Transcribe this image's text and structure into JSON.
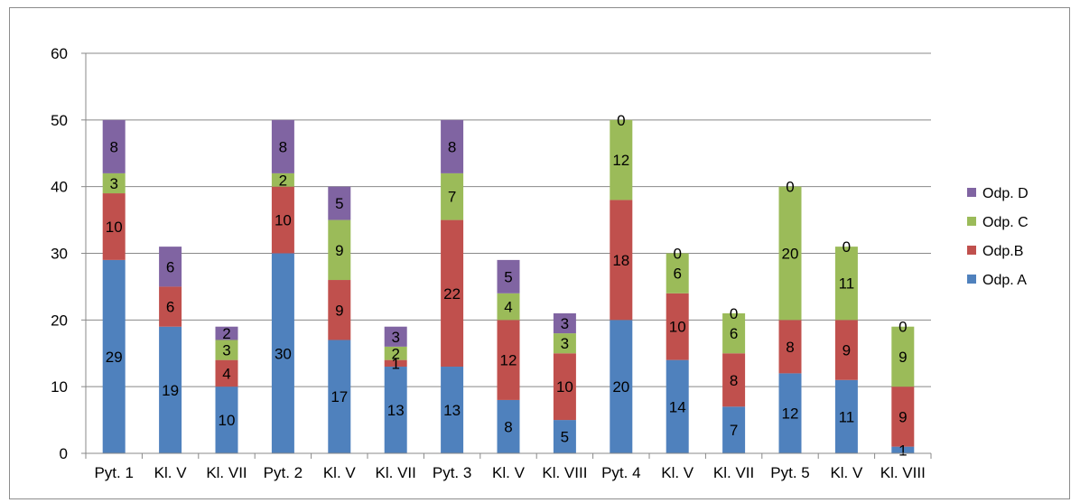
{
  "chart_data": {
    "type": "bar",
    "stacked": true,
    "title": "",
    "xlabel": "",
    "ylabel": "",
    "ylim": [
      0,
      60
    ],
    "yticks": [
      0,
      10,
      20,
      30,
      40,
      50,
      60
    ],
    "grid": true,
    "legend_position": "right",
    "categories": [
      "Pyt. 1",
      "Kl. V",
      "Kl. VII",
      "Pyt. 2",
      "Kl. V",
      "Kl. VII",
      "Pyt. 3",
      "Kl. V",
      "Kl. VIII",
      "Pyt. 4",
      "Kl. V",
      "Kl. VII",
      "Pyt. 5",
      "Kl. V",
      "Kl. VIII"
    ],
    "series": [
      {
        "name": "Odp. A",
        "color": "#4f81bd",
        "values": [
          29,
          19,
          10,
          30,
          17,
          13,
          13,
          8,
          5,
          20,
          14,
          7,
          12,
          11,
          1
        ]
      },
      {
        "name": "Odp.B",
        "color": "#c0504d",
        "values": [
          10,
          6,
          4,
          10,
          9,
          1,
          22,
          12,
          10,
          18,
          10,
          8,
          8,
          9,
          9
        ]
      },
      {
        "name": "Odp. C",
        "color": "#9bbb59",
        "values": [
          3,
          0,
          3,
          2,
          9,
          2,
          7,
          4,
          3,
          12,
          6,
          6,
          20,
          11,
          9
        ]
      },
      {
        "name": "Odp. D",
        "color": "#8064a2",
        "values": [
          8,
          6,
          2,
          8,
          5,
          3,
          8,
          5,
          3,
          0,
          0,
          0,
          0,
          0,
          0
        ]
      }
    ]
  }
}
